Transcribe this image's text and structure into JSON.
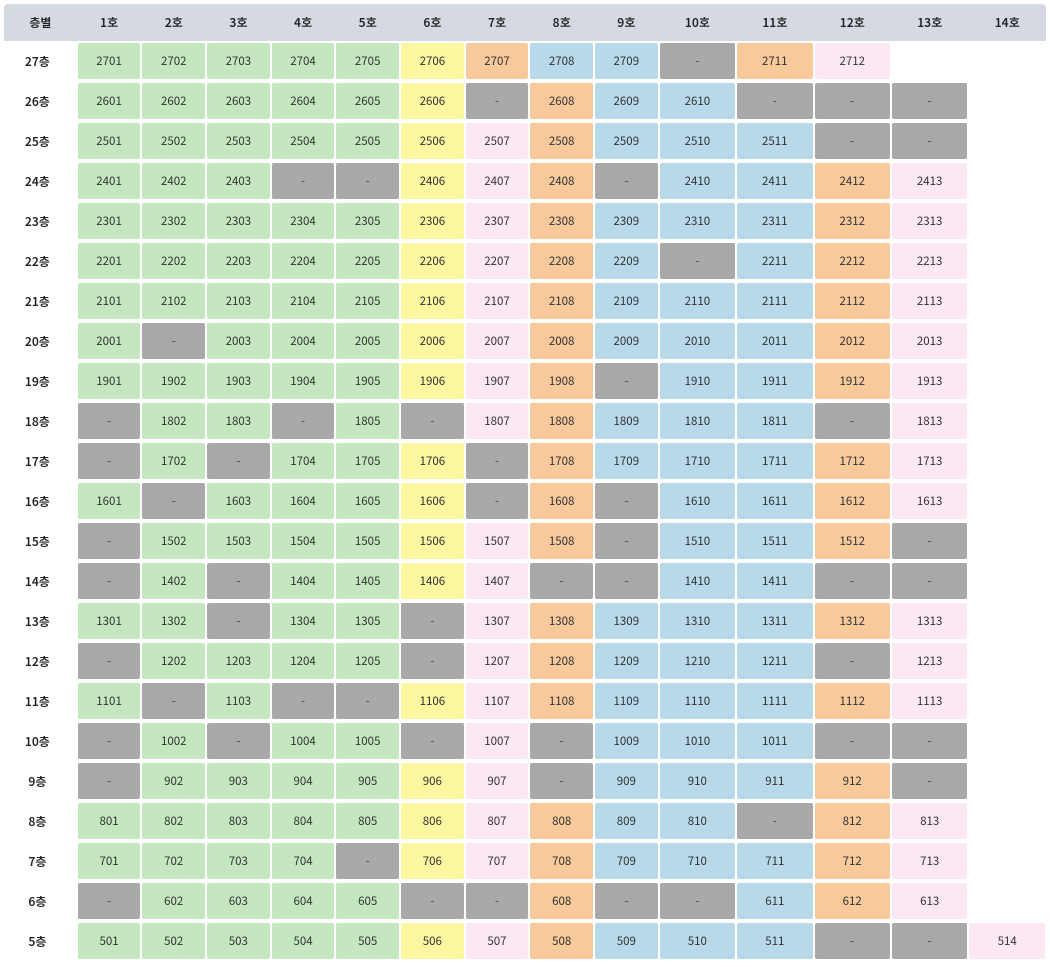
{
  "header_first": "층별",
  "columns": [
    "1호",
    "2호",
    "3호",
    "4호",
    "5호",
    "6호",
    "7호",
    "8호",
    "9호",
    "10호",
    "11호",
    "12호",
    "13호",
    "14호"
  ],
  "col_types": [
    "green",
    "green",
    "green",
    "green",
    "green",
    "yellow",
    "pink",
    "orange",
    "blue",
    "blue",
    "blue",
    "orange",
    "pink",
    "pink"
  ],
  "colors": {
    "green": "#c4e7c0",
    "yellow": "#fbf7a0",
    "pink": "#fce8f3",
    "orange": "#f7c99b",
    "blue": "#b7d9ea",
    "gray": "#a9a9a9"
  },
  "rows": [
    {
      "label": "27층",
      "cells": [
        "2701",
        "2702",
        "2703",
        "2704",
        "2705",
        "2706",
        "2707",
        "2708",
        "2709",
        "-",
        "2711",
        "2712",
        "",
        ""
      ],
      "types": [
        "green",
        "green",
        "green",
        "green",
        "green",
        "yellow",
        "orange",
        "blue",
        "blue",
        "gray",
        "orange",
        "pink",
        "empty",
        "empty"
      ]
    },
    {
      "label": "26층",
      "cells": [
        "2601",
        "2602",
        "2603",
        "2604",
        "2605",
        "2606",
        "-",
        "2608",
        "2609",
        "2610",
        "-",
        "-",
        "-",
        ""
      ],
      "types": [
        "green",
        "green",
        "green",
        "green",
        "green",
        "yellow",
        "gray",
        "orange",
        "blue",
        "blue",
        "gray",
        "gray",
        "gray",
        "empty"
      ]
    },
    {
      "label": "25층",
      "cells": [
        "2501",
        "2502",
        "2503",
        "2504",
        "2505",
        "2506",
        "2507",
        "2508",
        "2509",
        "2510",
        "2511",
        "-",
        "-",
        ""
      ],
      "types": [
        "green",
        "green",
        "green",
        "green",
        "green",
        "yellow",
        "pink",
        "orange",
        "blue",
        "blue",
        "blue",
        "gray",
        "gray",
        "empty"
      ]
    },
    {
      "label": "24층",
      "cells": [
        "2401",
        "2402",
        "2403",
        "-",
        "-",
        "2406",
        "2407",
        "2408",
        "-",
        "2410",
        "2411",
        "2412",
        "2413",
        ""
      ],
      "types": [
        "green",
        "green",
        "green",
        "gray",
        "gray",
        "yellow",
        "pink",
        "orange",
        "gray",
        "blue",
        "blue",
        "orange",
        "pink",
        "empty"
      ]
    },
    {
      "label": "23층",
      "cells": [
        "2301",
        "2302",
        "2303",
        "2304",
        "2305",
        "2306",
        "2307",
        "2308",
        "2309",
        "2310",
        "2311",
        "2312",
        "2313",
        ""
      ],
      "types": [
        "green",
        "green",
        "green",
        "green",
        "green",
        "yellow",
        "pink",
        "orange",
        "blue",
        "blue",
        "blue",
        "orange",
        "pink",
        "empty"
      ]
    },
    {
      "label": "22층",
      "cells": [
        "2201",
        "2202",
        "2203",
        "2204",
        "2205",
        "2206",
        "2207",
        "2208",
        "2209",
        "-",
        "2211",
        "2212",
        "2213",
        ""
      ],
      "types": [
        "green",
        "green",
        "green",
        "green",
        "green",
        "yellow",
        "pink",
        "orange",
        "blue",
        "gray",
        "blue",
        "orange",
        "pink",
        "empty"
      ]
    },
    {
      "label": "21층",
      "cells": [
        "2101",
        "2102",
        "2103",
        "2104",
        "2105",
        "2106",
        "2107",
        "2108",
        "2109",
        "2110",
        "2111",
        "2112",
        "2113",
        ""
      ],
      "types": [
        "green",
        "green",
        "green",
        "green",
        "green",
        "yellow",
        "pink",
        "orange",
        "blue",
        "blue",
        "blue",
        "orange",
        "pink",
        "empty"
      ]
    },
    {
      "label": "20층",
      "cells": [
        "2001",
        "-",
        "2003",
        "2004",
        "2005",
        "2006",
        "2007",
        "2008",
        "2009",
        "2010",
        "2011",
        "2012",
        "2013",
        ""
      ],
      "types": [
        "green",
        "gray",
        "green",
        "green",
        "green",
        "yellow",
        "pink",
        "orange",
        "blue",
        "blue",
        "blue",
        "orange",
        "pink",
        "empty"
      ]
    },
    {
      "label": "19층",
      "cells": [
        "1901",
        "1902",
        "1903",
        "1904",
        "1905",
        "1906",
        "1907",
        "1908",
        "-",
        "1910",
        "1911",
        "1912",
        "1913",
        ""
      ],
      "types": [
        "green",
        "green",
        "green",
        "green",
        "green",
        "yellow",
        "pink",
        "orange",
        "gray",
        "blue",
        "blue",
        "orange",
        "pink",
        "empty"
      ]
    },
    {
      "label": "18층",
      "cells": [
        "-",
        "1802",
        "1803",
        "-",
        "1805",
        "-",
        "1807",
        "1808",
        "1809",
        "1810",
        "1811",
        "-",
        "1813",
        ""
      ],
      "types": [
        "gray",
        "green",
        "green",
        "gray",
        "green",
        "gray",
        "pink",
        "orange",
        "blue",
        "blue",
        "blue",
        "gray",
        "pink",
        "empty"
      ]
    },
    {
      "label": "17층",
      "cells": [
        "-",
        "1702",
        "-",
        "1704",
        "1705",
        "1706",
        "-",
        "1708",
        "1709",
        "1710",
        "1711",
        "1712",
        "1713",
        ""
      ],
      "types": [
        "gray",
        "green",
        "gray",
        "green",
        "green",
        "yellow",
        "gray",
        "orange",
        "blue",
        "blue",
        "blue",
        "orange",
        "pink",
        "empty"
      ]
    },
    {
      "label": "16층",
      "cells": [
        "1601",
        "-",
        "1603",
        "1604",
        "1605",
        "1606",
        "-",
        "1608",
        "-",
        "1610",
        "1611",
        "1612",
        "1613",
        ""
      ],
      "types": [
        "green",
        "gray",
        "green",
        "green",
        "green",
        "yellow",
        "gray",
        "orange",
        "gray",
        "blue",
        "blue",
        "orange",
        "pink",
        "empty"
      ]
    },
    {
      "label": "15층",
      "cells": [
        "-",
        "1502",
        "1503",
        "1504",
        "1505",
        "1506",
        "1507",
        "1508",
        "-",
        "1510",
        "1511",
        "1512",
        "-",
        ""
      ],
      "types": [
        "gray",
        "green",
        "green",
        "green",
        "green",
        "yellow",
        "pink",
        "orange",
        "gray",
        "blue",
        "blue",
        "orange",
        "gray",
        "empty"
      ]
    },
    {
      "label": "14층",
      "cells": [
        "-",
        "1402",
        "-",
        "1404",
        "1405",
        "1406",
        "1407",
        "-",
        "-",
        "1410",
        "1411",
        "-",
        "-",
        ""
      ],
      "types": [
        "gray",
        "green",
        "gray",
        "green",
        "green",
        "yellow",
        "pink",
        "gray",
        "gray",
        "blue",
        "blue",
        "gray",
        "gray",
        "empty"
      ]
    },
    {
      "label": "13층",
      "cells": [
        "1301",
        "1302",
        "-",
        "1304",
        "1305",
        "-",
        "1307",
        "1308",
        "1309",
        "1310",
        "1311",
        "1312",
        "1313",
        ""
      ],
      "types": [
        "green",
        "green",
        "gray",
        "green",
        "green",
        "gray",
        "pink",
        "orange",
        "blue",
        "blue",
        "blue",
        "orange",
        "pink",
        "empty"
      ]
    },
    {
      "label": "12층",
      "cells": [
        "-",
        "1202",
        "1203",
        "1204",
        "1205",
        "-",
        "1207",
        "1208",
        "1209",
        "1210",
        "1211",
        "-",
        "1213",
        ""
      ],
      "types": [
        "gray",
        "green",
        "green",
        "green",
        "green",
        "gray",
        "pink",
        "orange",
        "blue",
        "blue",
        "blue",
        "gray",
        "pink",
        "empty"
      ]
    },
    {
      "label": "11층",
      "cells": [
        "1101",
        "-",
        "1103",
        "-",
        "-",
        "1106",
        "1107",
        "1108",
        "1109",
        "1110",
        "1111",
        "1112",
        "1113",
        ""
      ],
      "types": [
        "green",
        "gray",
        "green",
        "gray",
        "gray",
        "yellow",
        "pink",
        "orange",
        "blue",
        "blue",
        "blue",
        "orange",
        "pink",
        "empty"
      ]
    },
    {
      "label": "10층",
      "cells": [
        "-",
        "1002",
        "-",
        "1004",
        "1005",
        "-",
        "1007",
        "-",
        "1009",
        "1010",
        "1011",
        "-",
        "-",
        ""
      ],
      "types": [
        "gray",
        "green",
        "gray",
        "green",
        "green",
        "gray",
        "pink",
        "gray",
        "blue",
        "blue",
        "blue",
        "gray",
        "gray",
        "empty"
      ]
    },
    {
      "label": "9층",
      "cells": [
        "-",
        "902",
        "903",
        "904",
        "905",
        "906",
        "907",
        "-",
        "909",
        "910",
        "911",
        "912",
        "-",
        ""
      ],
      "types": [
        "gray",
        "green",
        "green",
        "green",
        "green",
        "yellow",
        "pink",
        "gray",
        "blue",
        "blue",
        "blue",
        "orange",
        "gray",
        "empty"
      ]
    },
    {
      "label": "8층",
      "cells": [
        "801",
        "802",
        "803",
        "804",
        "805",
        "806",
        "807",
        "808",
        "809",
        "810",
        "-",
        "812",
        "813",
        ""
      ],
      "types": [
        "green",
        "green",
        "green",
        "green",
        "green",
        "yellow",
        "pink",
        "orange",
        "blue",
        "blue",
        "gray",
        "orange",
        "pink",
        "empty"
      ]
    },
    {
      "label": "7층",
      "cells": [
        "701",
        "702",
        "703",
        "704",
        "-",
        "706",
        "707",
        "708",
        "709",
        "710",
        "711",
        "712",
        "713",
        ""
      ],
      "types": [
        "green",
        "green",
        "green",
        "green",
        "gray",
        "yellow",
        "pink",
        "orange",
        "blue",
        "blue",
        "blue",
        "orange",
        "pink",
        "empty"
      ]
    },
    {
      "label": "6층",
      "cells": [
        "-",
        "602",
        "603",
        "604",
        "605",
        "-",
        "-",
        "608",
        "-",
        "-",
        "611",
        "612",
        "613",
        ""
      ],
      "types": [
        "gray",
        "green",
        "green",
        "green",
        "green",
        "gray",
        "gray",
        "orange",
        "gray",
        "gray",
        "blue",
        "orange",
        "pink",
        "empty"
      ]
    },
    {
      "label": "5층",
      "cells": [
        "501",
        "502",
        "503",
        "504",
        "505",
        "506",
        "507",
        "508",
        "509",
        "510",
        "511",
        "-",
        "-",
        "514"
      ],
      "types": [
        "green",
        "green",
        "green",
        "green",
        "green",
        "yellow",
        "pink",
        "orange",
        "blue",
        "blue",
        "blue",
        "gray",
        "gray",
        "pink"
      ]
    }
  ]
}
